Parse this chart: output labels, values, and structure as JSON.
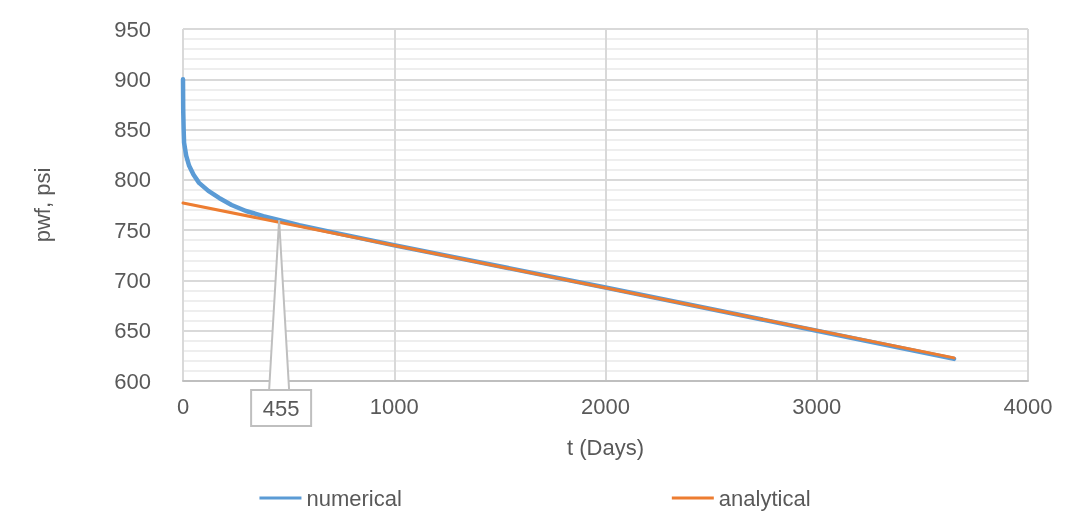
{
  "chart_data": {
    "type": "line",
    "xlabel": "t (Days)",
    "ylabel": "pwf, psi",
    "xlim": [
      0,
      4000
    ],
    "xticks": [
      0,
      1000,
      2000,
      3000,
      4000
    ],
    "ylim": [
      600,
      950
    ],
    "yticks": [
      600,
      650,
      700,
      750,
      800,
      850,
      900,
      950
    ],
    "grid": true,
    "legend": "bottom",
    "marker": "none",
    "line_style": "solid",
    "series": [
      {
        "name": "numerical",
        "color": "#5b9bd5",
        "x": [
          0,
          1,
          3,
          5,
          15,
          29,
          50,
          76,
          120,
          171,
          230,
          298,
          380,
          457,
          550,
          727,
          1000,
          2000,
          3000,
          3650
        ],
        "values": [
          900,
          870,
          850,
          837,
          824,
          814,
          805,
          797,
          789,
          782,
          775,
          769,
          764,
          760,
          755,
          747,
          735,
          693,
          650,
          622
        ]
      },
      {
        "name": "analytical",
        "color": "#ed7d31",
        "x": [
          0,
          3650
        ],
        "values": [
          777,
          623
        ]
      }
    ],
    "annotations": [
      {
        "text": "455",
        "x": 455,
        "y": 760
      }
    ]
  }
}
